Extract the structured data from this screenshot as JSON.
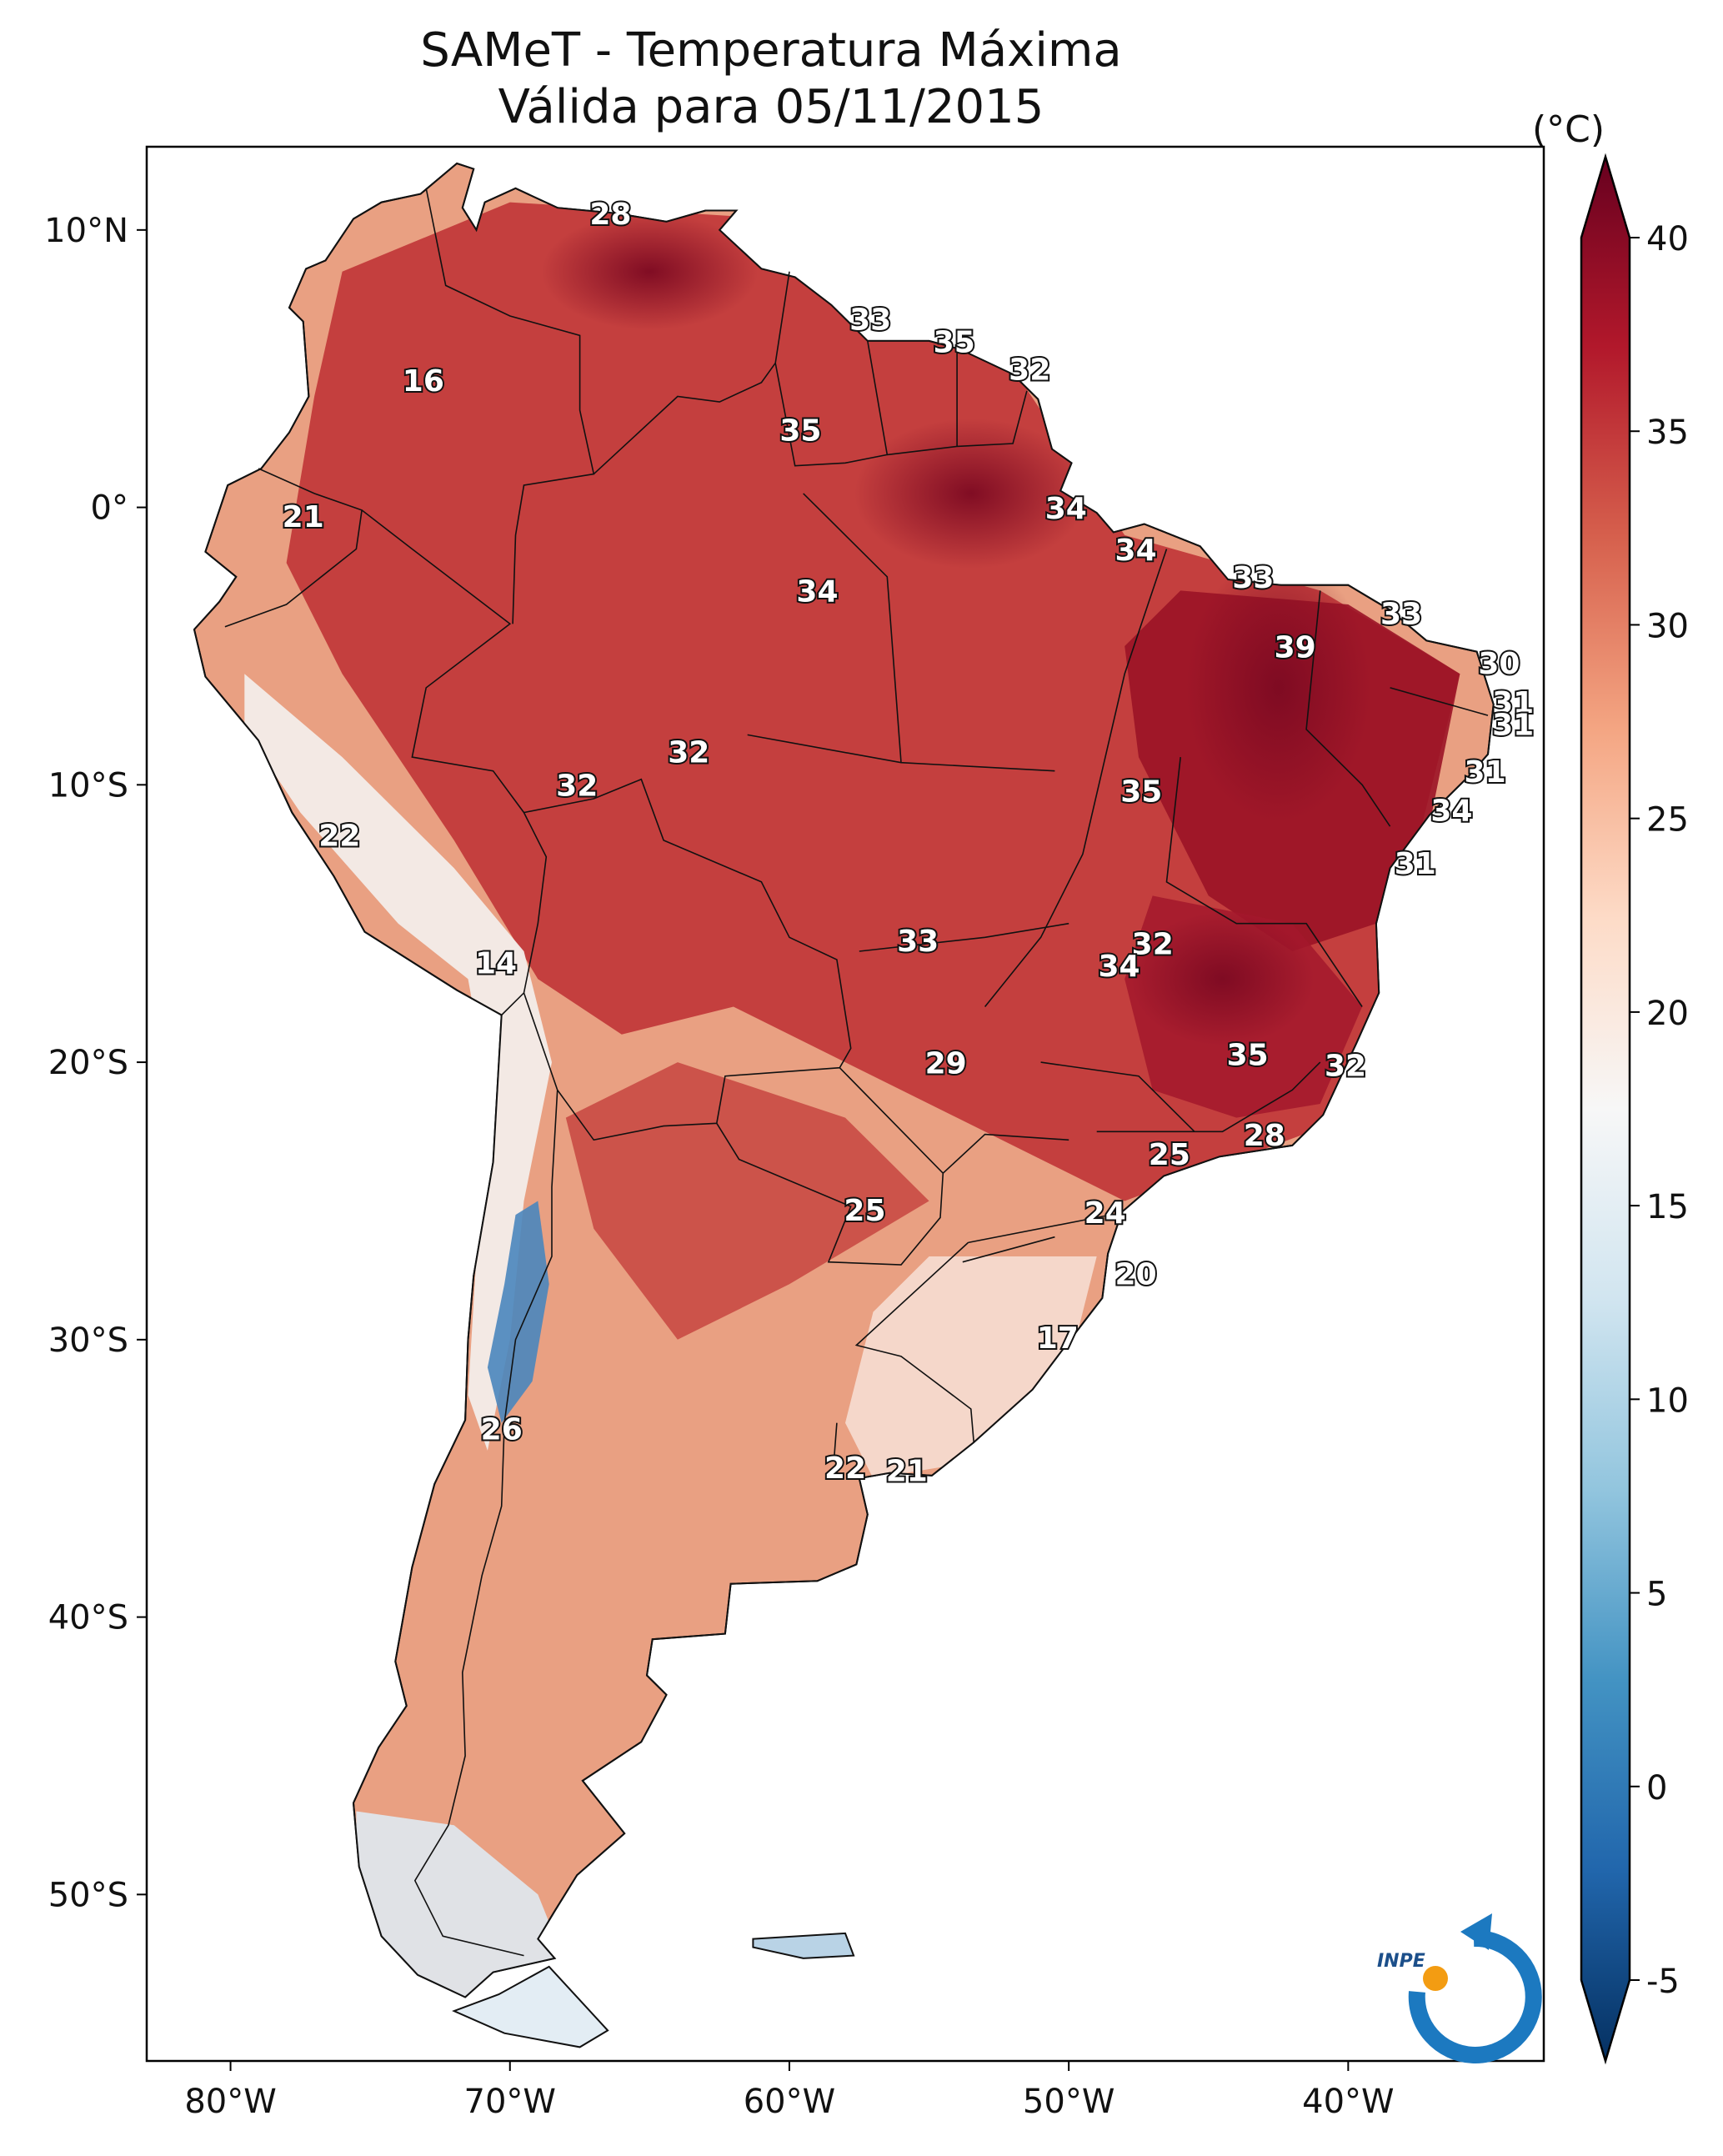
{
  "title": {
    "line1": "SAMeT - Temperatura Máxima",
    "line2": "Válida para 05/11/2015"
  },
  "colorbar": {
    "unit": "(°C)",
    "vmin": -5,
    "vmax": 40,
    "ticks": [
      "40",
      "35",
      "30",
      "25",
      "20",
      "15",
      "10",
      "5",
      "0",
      "-5"
    ],
    "colormap": "RdBu_r",
    "extend": "both"
  },
  "axes": {
    "lon_range": [
      -83,
      -33
    ],
    "lat_range": [
      -56,
      13
    ],
    "lon_ticks": [
      "80°W",
      "70°W",
      "60°W",
      "50°W",
      "40°W"
    ],
    "lon_tick_values": [
      -80,
      -70,
      -60,
      -50,
      -40
    ],
    "lat_ticks": [
      "10°N",
      "0°",
      "10°S",
      "20°S",
      "30°S",
      "40°S",
      "50°S"
    ],
    "lat_tick_values": [
      10,
      0,
      -10,
      -20,
      -30,
      -40,
      -50
    ]
  },
  "labels": [
    {
      "text": "28",
      "lon": -66.4,
      "lat": 10.5
    },
    {
      "text": "16",
      "lon": -73.1,
      "lat": 4.5
    },
    {
      "text": "21",
      "lon": -77.4,
      "lat": -0.4
    },
    {
      "text": "33",
      "lon": -57.1,
      "lat": 6.7
    },
    {
      "text": "35",
      "lon": -54.1,
      "lat": 5.9
    },
    {
      "text": "32",
      "lon": -51.4,
      "lat": 4.9
    },
    {
      "text": "35",
      "lon": -59.6,
      "lat": 2.7
    },
    {
      "text": "34",
      "lon": -50.1,
      "lat": -0.1
    },
    {
      "text": "34",
      "lon": -47.6,
      "lat": -1.6
    },
    {
      "text": "33",
      "lon": -43.4,
      "lat": -2.6
    },
    {
      "text": "34",
      "lon": -59.0,
      "lat": -3.1
    },
    {
      "text": "33",
      "lon": -38.1,
      "lat": -3.9
    },
    {
      "text": "39",
      "lon": -41.9,
      "lat": -5.1
    },
    {
      "text": "30",
      "lon": -34.6,
      "lat": -5.7
    },
    {
      "text": "31",
      "lon": -34.1,
      "lat": -7.1
    },
    {
      "text": "31",
      "lon": -34.1,
      "lat": -7.9
    },
    {
      "text": "32",
      "lon": -63.6,
      "lat": -8.9
    },
    {
      "text": "32",
      "lon": -67.6,
      "lat": -10.1
    },
    {
      "text": "35",
      "lon": -47.4,
      "lat": -10.3
    },
    {
      "text": "31",
      "lon": -35.1,
      "lat": -9.6
    },
    {
      "text": "34",
      "lon": -36.3,
      "lat": -11.0
    },
    {
      "text": "22",
      "lon": -76.1,
      "lat": -11.9
    },
    {
      "text": "31",
      "lon": -37.6,
      "lat": -12.9
    },
    {
      "text": "33",
      "lon": -55.4,
      "lat": -15.7
    },
    {
      "text": "32",
      "lon": -47.0,
      "lat": -15.8
    },
    {
      "text": "34",
      "lon": -48.2,
      "lat": -16.6
    },
    {
      "text": "14",
      "lon": -70.5,
      "lat": -16.5
    },
    {
      "text": "29",
      "lon": -54.4,
      "lat": -20.1
    },
    {
      "text": "35",
      "lon": -43.6,
      "lat": -19.8
    },
    {
      "text": "32",
      "lon": -40.1,
      "lat": -20.2
    },
    {
      "text": "28",
      "lon": -43.0,
      "lat": -22.7
    },
    {
      "text": "25",
      "lon": -46.4,
      "lat": -23.4
    },
    {
      "text": "25",
      "lon": -57.3,
      "lat": -25.4
    },
    {
      "text": "24",
      "lon": -48.7,
      "lat": -25.5
    },
    {
      "text": "20",
      "lon": -47.6,
      "lat": -27.7
    },
    {
      "text": "17",
      "lon": -50.4,
      "lat": -30.0
    },
    {
      "text": "26",
      "lon": -70.3,
      "lat": -33.3
    },
    {
      "text": "22",
      "lon": -58.0,
      "lat": -34.7
    },
    {
      "text": "21",
      "lon": -55.8,
      "lat": -34.8
    }
  ],
  "logo": {
    "text": "INPE"
  }
}
